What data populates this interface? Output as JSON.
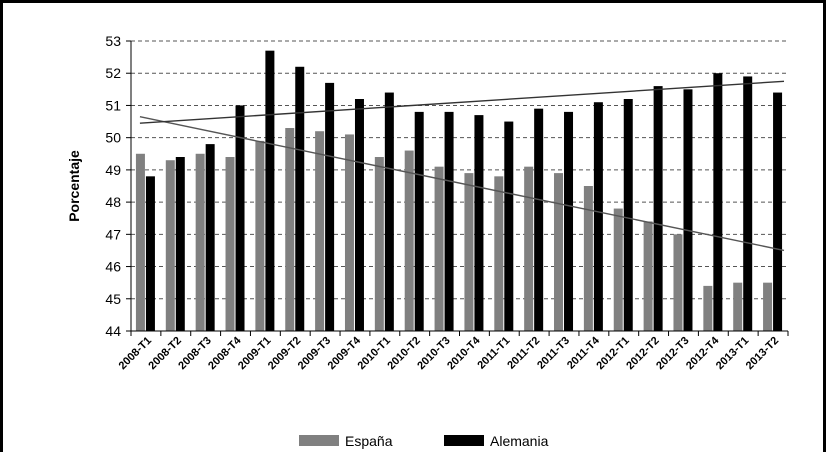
{
  "chart_data": {
    "type": "bar",
    "ylabel": "Porcentaje",
    "ylim": [
      44,
      53
    ],
    "yticks": [
      44,
      45,
      46,
      47,
      48,
      49,
      50,
      51,
      52,
      53
    ],
    "grid": "horizontal dashed",
    "legend_position": "bottom",
    "categories": [
      "2008-T1",
      "2008-T2",
      "2008-T3",
      "2008-T4",
      "2009-T1",
      "2009-T2",
      "2009-T3",
      "2009-T4",
      "2010-T1",
      "2010-T2",
      "2010-T3",
      "2010-T4",
      "2011-T1",
      "2011-T2",
      "2011-T3",
      "2011-T4",
      "2012-T1",
      "2012-T2",
      "2012-T3",
      "2012-T4",
      "2013-T1",
      "2013-T2"
    ],
    "series": [
      {
        "name": "España",
        "color": "#808080",
        "values": [
          49.5,
          49.3,
          49.5,
          49.4,
          49.9,
          50.3,
          50.2,
          50.1,
          49.4,
          49.6,
          49.1,
          48.9,
          48.8,
          49.1,
          48.9,
          48.5,
          47.8,
          47.4,
          47.0,
          45.4,
          45.5,
          45.5
        ]
      },
      {
        "name": "Alemania",
        "color": "#000000",
        "values": [
          48.8,
          49.4,
          49.8,
          51.0,
          52.7,
          52.2,
          51.7,
          51.2,
          51.4,
          50.8,
          50.8,
          50.7,
          50.5,
          50.9,
          50.8,
          51.1,
          51.2,
          51.6,
          51.5,
          52.0,
          51.9,
          51.4
        ]
      }
    ],
    "trendlines": [
      {
        "series": "España",
        "type": "linear",
        "color": "#555555",
        "start_value": 50.65,
        "end_value": 46.5
      },
      {
        "series": "Alemania",
        "type": "linear",
        "color": "#333333",
        "start_value": 50.45,
        "end_value": 51.75
      }
    ]
  }
}
